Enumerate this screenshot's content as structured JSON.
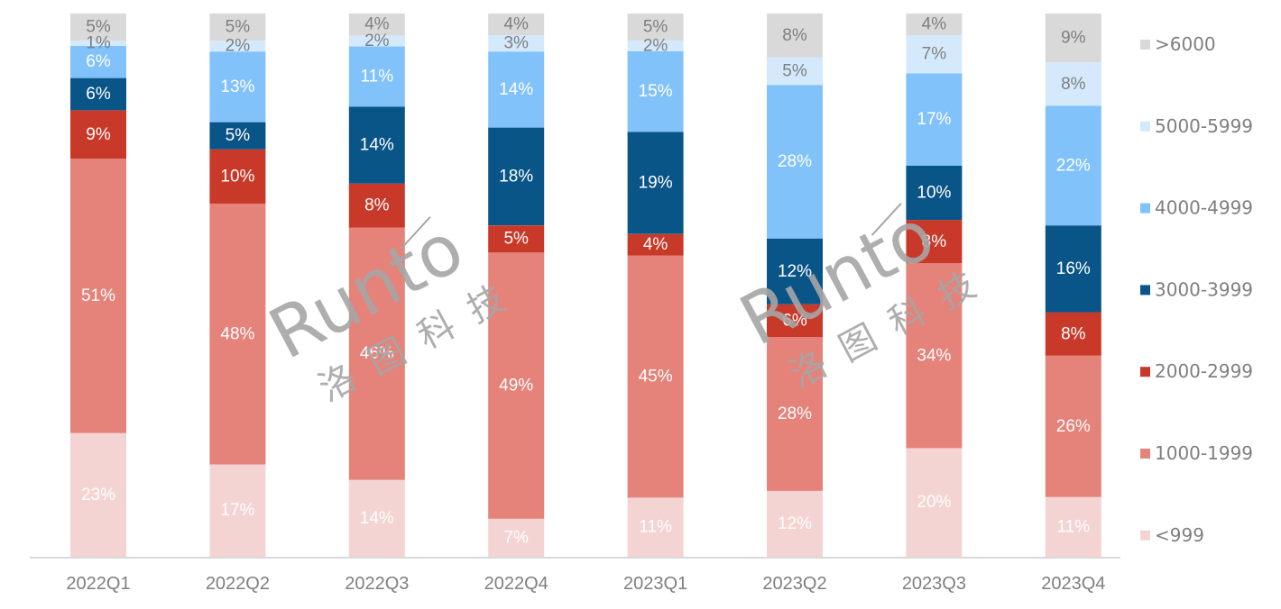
{
  "chart_data": {
    "type": "bar",
    "stacked": true,
    "percent": true,
    "title": "",
    "xlabel": "",
    "ylabel": "",
    "ylim": [
      0,
      100
    ],
    "grid": false,
    "legend_position": "right",
    "categories": [
      "2022Q1",
      "2022Q2",
      "2022Q3",
      "2022Q4",
      "2023Q1",
      "2023Q2",
      "2023Q3",
      "2023Q4"
    ],
    "series": [
      {
        "name": "<999",
        "color": "#f4d4d2",
        "label_color": "#ffffff",
        "values": [
          23,
          17,
          14,
          7,
          11,
          12,
          20,
          11
        ]
      },
      {
        "name": "1000-1999",
        "color": "#e5827a",
        "label_color": "#ffffff",
        "values": [
          51,
          48,
          46,
          49,
          45,
          28,
          34,
          26
        ]
      },
      {
        "name": "2000-2999",
        "color": "#c9392a",
        "label_color": "#ffffff",
        "values": [
          9,
          10,
          8,
          5,
          4,
          6,
          8,
          8
        ]
      },
      {
        "name": "3000-3999",
        "color": "#0a5588",
        "label_color": "#ffffff",
        "values": [
          6,
          5,
          14,
          18,
          19,
          12,
          10,
          16
        ]
      },
      {
        "name": "4000-4999",
        "color": "#82c2fb",
        "label_color": "#ffffff",
        "values": [
          6,
          13,
          11,
          14,
          15,
          28,
          17,
          22
        ]
      },
      {
        "name": "5000-5999",
        "color": "#d4e9fc",
        "label_color": "#7f7f7f",
        "values": [
          1,
          2,
          2,
          3,
          2,
          5,
          7,
          8
        ]
      },
      {
        "name": ">6000",
        "color": "#d9d9d9",
        "label_color": "#7f7f7f",
        "values": [
          5,
          5,
          4,
          4,
          5,
          8,
          4,
          9
        ]
      }
    ],
    "legend_order": [
      ">6000",
      "5000-5999",
      "4000-4999",
      "3000-3999",
      "2000-2999",
      "1000-1999",
      "<999"
    ]
  },
  "watermark": {
    "logo_text": "Runto",
    "cn_text": "洛图科技"
  },
  "colors": {
    "axis": "#d9d9d9",
    "text": "#7f7f7f"
  }
}
